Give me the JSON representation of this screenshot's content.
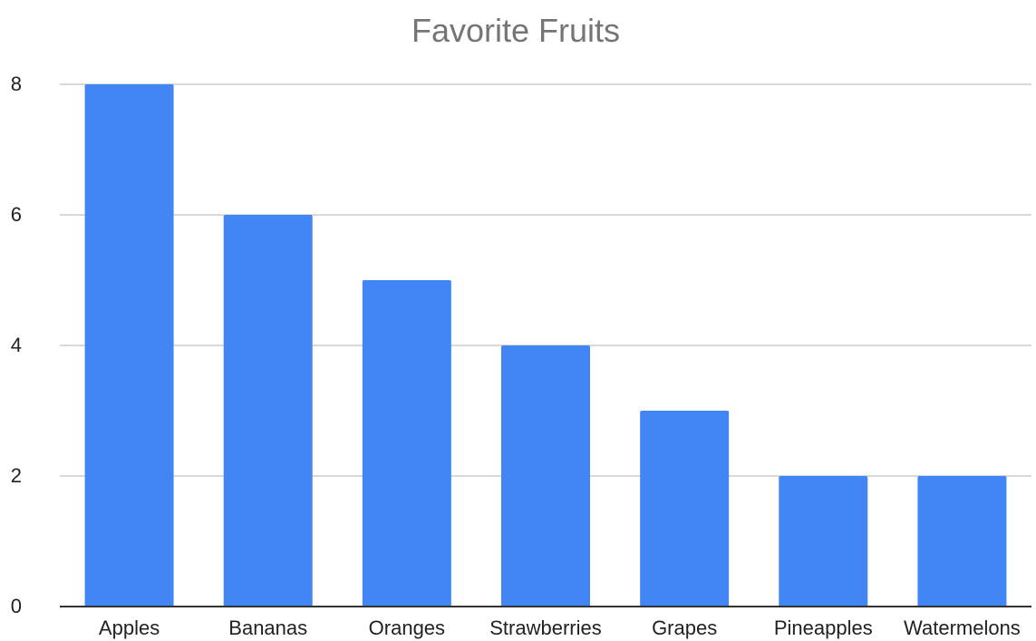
{
  "chart_data": {
    "type": "bar",
    "title": "Favorite Fruits",
    "xlabel": "",
    "ylabel": "",
    "categories": [
      "Apples",
      "Bananas",
      "Oranges",
      "Strawberries",
      "Grapes",
      "Pineapples",
      "Watermelons"
    ],
    "series": [
      {
        "values": [
          8,
          6,
          5,
          4,
          3,
          2,
          2
        ]
      }
    ],
    "ylim": [
      0,
      8
    ],
    "yticks": [
      0,
      2,
      4,
      6,
      8
    ],
    "grid": true,
    "legend": "none",
    "bar_color": "#4285f4"
  }
}
